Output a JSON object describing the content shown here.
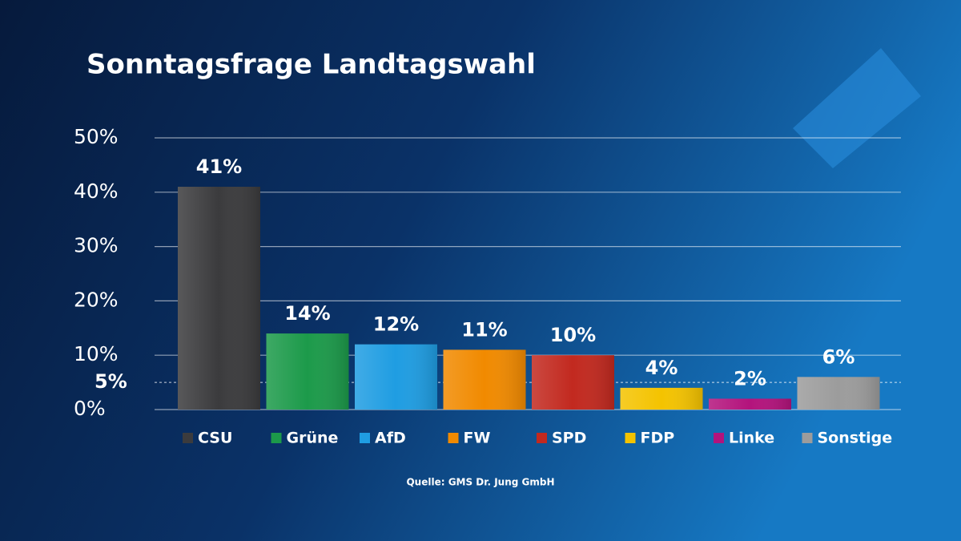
{
  "chart_data": {
    "type": "bar",
    "title": "Sonntagsfrage Landtagswahl",
    "categories": [
      "CSU",
      "Grüne",
      "AfD",
      "FW",
      "SPD",
      "FDP",
      "Linke",
      "Sonstige"
    ],
    "values": [
      41,
      14,
      12,
      11,
      10,
      4,
      2,
      6
    ],
    "value_labels": [
      "41%",
      "14%",
      "12%",
      "11%",
      "10%",
      "4%",
      "2%",
      "6%"
    ],
    "colors": [
      "#3b3b3d",
      "#1c9a4a",
      "#1f9de2",
      "#f18a00",
      "#c2291f",
      "#f4c300",
      "#b3137c",
      "#9c9c9c"
    ],
    "ylim": [
      0,
      50
    ],
    "yticks": [
      {
        "value": 0,
        "label": "0%"
      },
      {
        "value": 10,
        "label": "10%"
      },
      {
        "value": 20,
        "label": "20%"
      },
      {
        "value": 30,
        "label": "30%"
      },
      {
        "value": 40,
        "label": "40%"
      },
      {
        "value": 50,
        "label": "50%"
      }
    ],
    "threshold": {
      "value": 5,
      "label": "5%"
    },
    "grid": true,
    "source": "Quelle: GMS Dr. Jung GmbH"
  }
}
